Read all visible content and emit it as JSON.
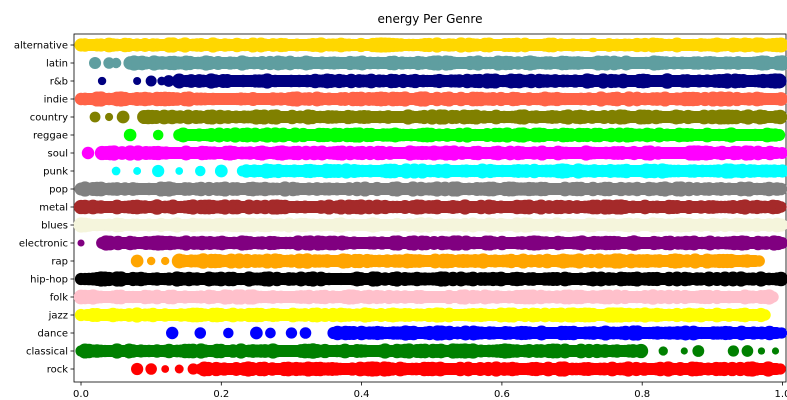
{
  "chart_data": {
    "type": "scatter",
    "title": "energy Per Genre",
    "xlabel": "",
    "ylabel": "",
    "xlim": [
      -0.01,
      1.005
    ],
    "x_ticks": [
      0.0,
      0.2,
      0.4,
      0.6,
      0.8,
      1.0
    ],
    "x_tick_labels": [
      "0.0",
      "0.2",
      "0.4",
      "0.6",
      "0.8",
      "1.0"
    ],
    "grid": false,
    "legend": "none",
    "series": [
      {
        "name": "alternative",
        "color": "#ffd700",
        "dense_range": [
          0.0,
          1.0
        ],
        "sparse_points": []
      },
      {
        "name": "latin",
        "color": "#5f9ea0",
        "dense_range": [
          0.07,
          1.0
        ],
        "sparse_points": [
          0.02,
          0.04,
          0.05
        ]
      },
      {
        "name": "r&b",
        "color": "#000080",
        "dense_range": [
          0.14,
          1.0
        ],
        "sparse_points": [
          0.03,
          0.08,
          0.1,
          0.115,
          0.125
        ]
      },
      {
        "name": "indie",
        "color": "#ff6347",
        "dense_range": [
          0.0,
          1.0
        ],
        "sparse_points": []
      },
      {
        "name": "country",
        "color": "#808000",
        "dense_range": [
          0.09,
          1.0
        ],
        "sparse_points": [
          0.02,
          0.04,
          0.06
        ]
      },
      {
        "name": "reggae",
        "color": "#00ff00",
        "dense_range": [
          0.14,
          1.0
        ],
        "sparse_points": [
          0.07,
          0.11
        ]
      },
      {
        "name": "soul",
        "color": "#ff00ff",
        "dense_range": [
          0.03,
          1.0
        ],
        "sparse_points": [
          0.01
        ]
      },
      {
        "name": "punk",
        "color": "#00ffff",
        "dense_range": [
          0.23,
          1.005
        ],
        "sparse_points": [
          0.05,
          0.08,
          0.11,
          0.14,
          0.17,
          0.2
        ]
      },
      {
        "name": "pop",
        "color": "#808080",
        "dense_range": [
          0.0,
          1.0
        ],
        "sparse_points": []
      },
      {
        "name": "metal",
        "color": "#a52a2a",
        "dense_range": [
          0.0,
          1.0
        ],
        "sparse_points": []
      },
      {
        "name": "blues",
        "color": "#f5f5dc",
        "dense_range": [
          0.0,
          1.0
        ],
        "sparse_points": []
      },
      {
        "name": "electronic",
        "color": "#800080",
        "dense_range": [
          0.03,
          1.0
        ],
        "sparse_points": [
          0.0
        ]
      },
      {
        "name": "rap",
        "color": "#ffa500",
        "dense_range": [
          0.14,
          0.97
        ],
        "sparse_points": [
          0.08,
          0.1,
          0.12
        ]
      },
      {
        "name": "hip-hop",
        "color": "#000000",
        "dense_range": [
          0.0,
          1.0
        ],
        "sparse_points": []
      },
      {
        "name": "folk",
        "color": "#ffc0cb",
        "dense_range": [
          0.0,
          0.99
        ],
        "sparse_points": []
      },
      {
        "name": "jazz",
        "color": "#ffff00",
        "dense_range": [
          0.0,
          0.98
        ],
        "sparse_points": []
      },
      {
        "name": "dance",
        "color": "#0000ff",
        "dense_range": [
          0.36,
          1.0
        ],
        "sparse_points": [
          0.13,
          0.17,
          0.21,
          0.25,
          0.27,
          0.3,
          0.32
        ]
      },
      {
        "name": "classical",
        "color": "#008000",
        "dense_range": [
          0.0,
          0.8
        ],
        "sparse_points": [
          0.83,
          0.86,
          0.88,
          0.93,
          0.95,
          0.97,
          0.99
        ]
      },
      {
        "name": "rock",
        "color": "#ff0000",
        "dense_range": [
          0.17,
          1.0
        ],
        "sparse_points": [
          0.08,
          0.1,
          0.12,
          0.14,
          0.16
        ]
      }
    ]
  }
}
